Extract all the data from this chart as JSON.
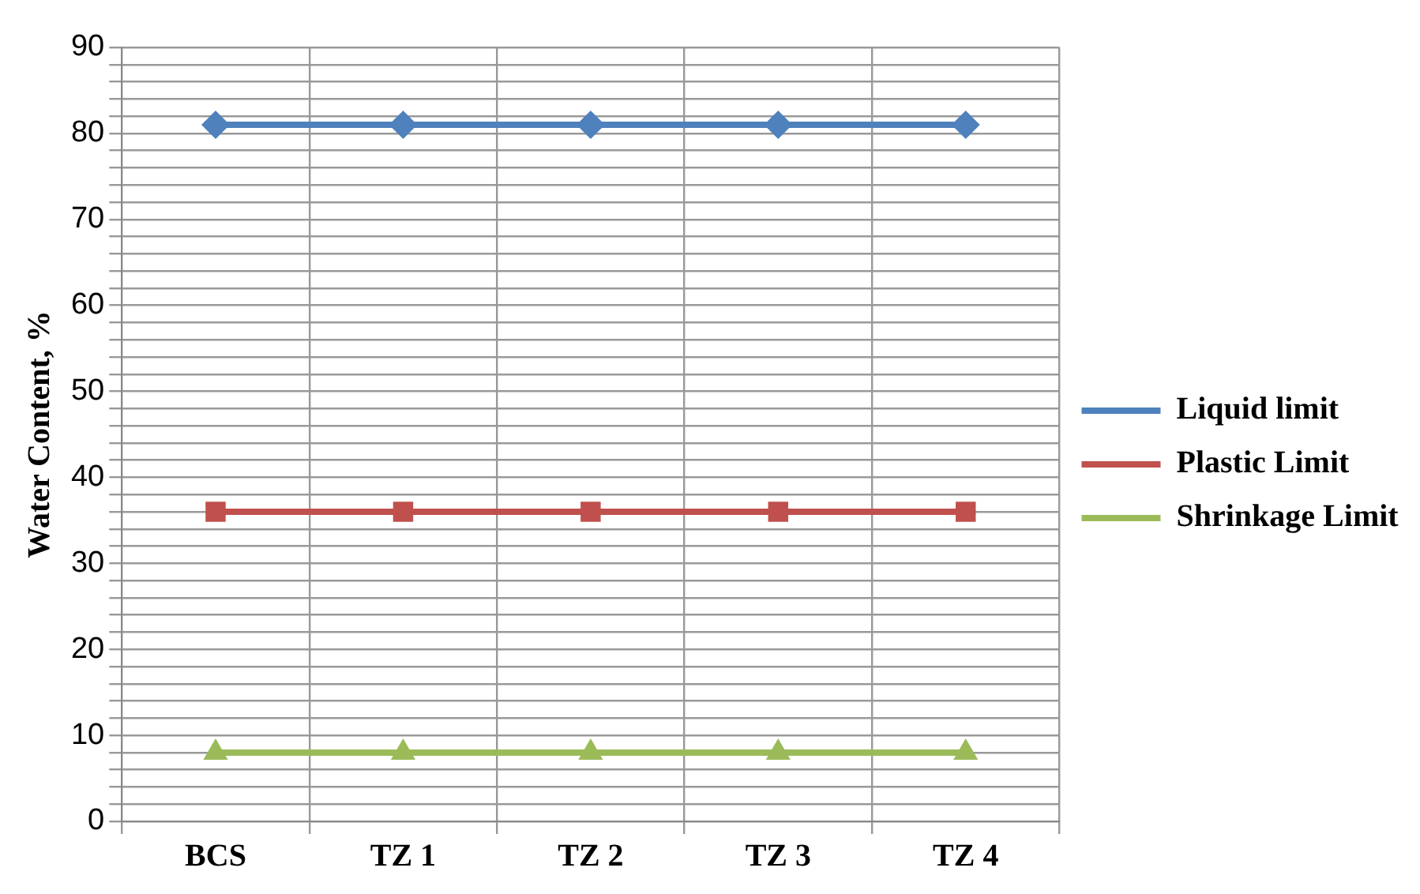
{
  "chart_data": {
    "type": "line",
    "ylabel": "Water Content, %",
    "categories": [
      "BCS",
      "TZ 1",
      "TZ 2",
      "TZ 3",
      "TZ 4"
    ],
    "series": [
      {
        "name": "Liquid limit",
        "color": "#4f81bd",
        "marker": "diamond",
        "values": [
          81,
          81,
          81,
          81,
          81
        ]
      },
      {
        "name": "Plastic Limit",
        "color": "#c0504d",
        "marker": "square",
        "values": [
          36,
          36,
          36,
          36,
          36
        ]
      },
      {
        "name": "Shrinkage Limit",
        "color": "#9bbb59",
        "marker": "triangle",
        "values": [
          8,
          8,
          8,
          8,
          8
        ]
      }
    ],
    "ylim": [
      0,
      90
    ],
    "yticks": [
      0,
      {
        "value": 2,
        "label": null
      },
      {
        "value": 4,
        "label": null
      },
      {
        "value": 6,
        "label": null
      },
      {
        "value": 8,
        "label": null
      },
      10,
      {
        "value": 12,
        "label": null
      },
      {
        "value": 14,
        "label": null
      },
      {
        "value": 16,
        "label": null
      },
      {
        "value": 18,
        "label": null
      },
      20,
      {
        "value": 22,
        "label": null
      },
      {
        "value": 24,
        "label": null
      },
      {
        "value": 26,
        "label": null
      },
      {
        "value": 28,
        "label": null
      },
      30,
      {
        "value": 32,
        "label": null
      },
      {
        "value": 34,
        "label": null
      },
      {
        "value": 36,
        "label": null
      },
      {
        "value": 38,
        "label": null
      },
      40,
      {
        "value": 42,
        "label": null
      },
      {
        "value": 44,
        "label": null
      },
      {
        "value": 46,
        "label": null
      },
      {
        "value": 48,
        "label": null
      },
      50,
      {
        "value": 52,
        "label": null
      },
      {
        "value": 54,
        "label": null
      },
      {
        "value": 56,
        "label": null
      },
      {
        "value": 58,
        "label": null
      },
      60,
      {
        "value": 62,
        "label": null
      },
      {
        "value": 64,
        "label": null
      },
      {
        "value": 66,
        "label": null
      },
      {
        "value": 68,
        "label": null
      },
      70,
      {
        "value": 72,
        "label": null
      },
      {
        "value": 74,
        "label": null
      },
      {
        "value": 76,
        "label": null
      },
      {
        "value": 78,
        "label": null
      },
      80,
      {
        "value": 82,
        "label": null
      },
      {
        "value": 84,
        "label": null
      },
      {
        "value": 86,
        "label": null
      },
      {
        "value": 88,
        "label": null
      },
      90
    ],
    "grid": true,
    "legend": "right",
    "line_style": "solid"
  }
}
